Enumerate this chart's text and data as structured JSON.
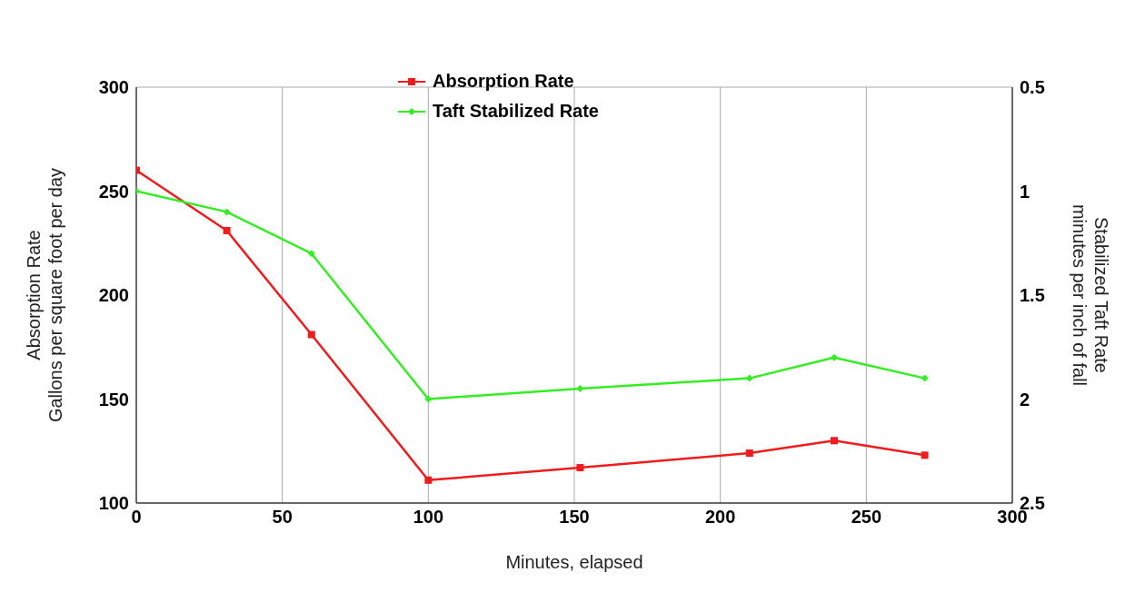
{
  "chart_data": {
    "type": "line",
    "xlabel": "Minutes, elapsed",
    "ylabel": "Absorption Rate\nGallons per square foot per day",
    "y2label": "Stabilized Taft Rate\nminutes per inch of fall",
    "x": [
      0,
      31,
      60,
      100,
      152,
      210,
      239,
      270
    ],
    "series": [
      {
        "name": "Absorption Rate",
        "color": "#ee1c1c",
        "marker": "square",
        "values": [
          260,
          231,
          181,
          111,
          117,
          124,
          130,
          123
        ]
      },
      {
        "name": "Taft Stabilized Rate",
        "color": "#33ee22",
        "marker": "diamond",
        "axis": "y2",
        "values": [
          1.0,
          1.1,
          1.3,
          2.0,
          1.95,
          1.9,
          1.8,
          1.9
        ]
      }
    ],
    "xlim": [
      0,
      300
    ],
    "xticks": [
      0,
      50,
      100,
      150,
      200,
      250,
      300
    ],
    "ylim": [
      100,
      300
    ],
    "yticks": [
      100,
      150,
      200,
      250,
      300
    ],
    "y2lim": [
      2.5,
      0.5
    ],
    "y2ticks": [
      0.5,
      1,
      1.5,
      2,
      2.5
    ],
    "grid": true,
    "legend": "top",
    "line_style": "solid"
  }
}
